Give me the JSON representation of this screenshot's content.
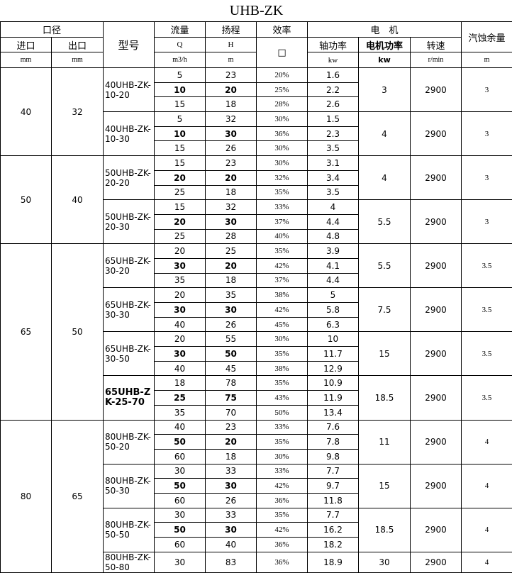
{
  "title": "UHB-ZK",
  "header": {
    "caliber": "口径",
    "inlet": "进口",
    "outlet": "出口",
    "model": "型号",
    "flow": "流量",
    "head": "扬程",
    "efficiency": "效率",
    "motor": "电　机",
    "npsh": "汽蚀余量",
    "q": "Q",
    "h": "H",
    "eff_symbol": "□",
    "shaft_power": "轴功率",
    "motor_power": "电机功率",
    "speed": "转速",
    "units": [
      "mm",
      "mm",
      "m3/h",
      "m",
      "kw",
      "kw",
      "r/min",
      "m"
    ]
  },
  "groups": [
    {
      "inlet": "40",
      "outlet": "32",
      "models": [
        {
          "model": "40UHB-ZK-10-20",
          "motor_power": "3",
          "speed": "2900",
          "npsh": "3",
          "rows": [
            [
              "5",
              "23",
              "20%",
              "1.6"
            ],
            [
              "10",
              "20",
              "25%",
              "2.2"
            ],
            [
              "15",
              "18",
              "28%",
              "2.6"
            ]
          ]
        },
        {
          "model": "40UHB-ZK-10-30",
          "motor_power": "4",
          "speed": "2900",
          "npsh": "3",
          "rows": [
            [
              "5",
              "32",
              "30%",
              "1.5"
            ],
            [
              "10",
              "30",
              "36%",
              "2.3"
            ],
            [
              "15",
              "26",
              "30%",
              "3.5"
            ]
          ]
        }
      ]
    },
    {
      "inlet": "50",
      "outlet": "40",
      "models": [
        {
          "model": "50UHB-ZK-20-20",
          "motor_power": "4",
          "speed": "2900",
          "npsh": "3",
          "rows": [
            [
              "15",
              "23",
              "30%",
              "3.1"
            ],
            [
              "20",
              "20",
              "32%",
              "3.4"
            ],
            [
              "25",
              "18",
              "35%",
              "3.5"
            ]
          ]
        },
        {
          "model": "50UHB-ZK-20-30",
          "motor_power": "5.5",
          "speed": "2900",
          "npsh": "3",
          "rows": [
            [
              "15",
              "32",
              "33%",
              "4"
            ],
            [
              "20",
              "30",
              "37%",
              "4.4"
            ],
            [
              "25",
              "28",
              "40%",
              "4.8"
            ]
          ]
        }
      ]
    },
    {
      "inlet": "65",
      "outlet": "50",
      "models": [
        {
          "model": "65UHB-ZK-30-20",
          "motor_power": "5.5",
          "speed": "2900",
          "npsh": "3.5",
          "rows": [
            [
              "20",
              "25",
              "35%",
              "3.9"
            ],
            [
              "30",
              "20",
              "42%",
              "4.1"
            ],
            [
              "35",
              "18",
              "37%",
              "4.4"
            ]
          ]
        },
        {
          "model": "65UHB-ZK-30-30",
          "motor_power": "7.5",
          "speed": "2900",
          "npsh": "3.5",
          "rows": [
            [
              "20",
              "35",
              "38%",
              "5"
            ],
            [
              "30",
              "30",
              "42%",
              "5.8"
            ],
            [
              "40",
              "26",
              "45%",
              "6.3"
            ]
          ]
        },
        {
          "model": "65UHB-ZK-30-50",
          "motor_power": "15",
          "speed": "2900",
          "npsh": "3.5",
          "rows": [
            [
              "20",
              "55",
              "30%",
              "10"
            ],
            [
              "30",
              "50",
              "35%",
              "11.7"
            ],
            [
              "40",
              "45",
              "38%",
              "12.9"
            ]
          ]
        },
        {
          "model": "65UHB-ZK-25-70",
          "motor_power": "18.5",
          "speed": "2900",
          "npsh": "3.5",
          "rows": [
            [
              "18",
              "78",
              "35%",
              "10.9"
            ],
            [
              "25",
              "75",
              "43%",
              "11.9"
            ],
            [
              "35",
              "70",
              "50%",
              "13.4"
            ]
          ]
        }
      ]
    },
    {
      "inlet": "80",
      "outlet": "65",
      "models": [
        {
          "model": "80UHB-ZK-50-20",
          "motor_power": "11",
          "speed": "2900",
          "npsh": "4",
          "rows": [
            [
              "40",
              "23",
              "33%",
              "7.6"
            ],
            [
              "50",
              "20",
              "35%",
              "7.8"
            ],
            [
              "60",
              "18",
              "30%",
              "9.8"
            ]
          ]
        },
        {
          "model": "80UHB-ZK-50-30",
          "motor_power": "15",
          "speed": "2900",
          "npsh": "4",
          "rows": [
            [
              "30",
              "33",
              "33%",
              "7.7"
            ],
            [
              "50",
              "30",
              "42%",
              "9.7"
            ],
            [
              "60",
              "26",
              "36%",
              "11.8"
            ]
          ]
        },
        {
          "model": "80UHB-ZK-50-50",
          "motor_power": "18.5",
          "speed": "2900",
          "npsh": "4",
          "rows": [
            [
              "30",
              "33",
              "35%",
              "7.7"
            ],
            [
              "50",
              "30",
              "42%",
              "16.2"
            ],
            [
              "60",
              "40",
              "36%",
              "18.2"
            ]
          ]
        },
        {
          "model": "80UHB-ZK-50-80",
          "motor_power": "30",
          "speed": "2900",
          "npsh": "4",
          "rows": [
            [
              "30",
              "83",
              "36%",
              "18.9"
            ]
          ]
        }
      ]
    }
  ]
}
